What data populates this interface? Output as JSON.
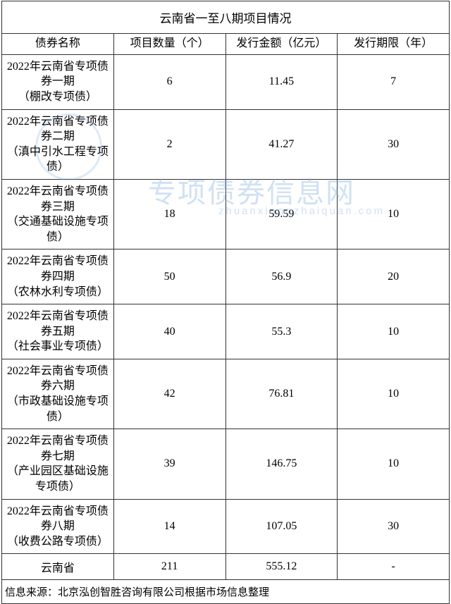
{
  "table": {
    "title": "云南省一至八期项目情况",
    "header": {
      "name": "债券名称",
      "count": "项目数量（个）",
      "amount": "发行金额（亿元）",
      "term": "发行期限（年）"
    },
    "rows": [
      {
        "name_line1": "2022年云南省专项债券一期",
        "name_line2": "（棚改专项债）",
        "count": "6",
        "amount": "11.45",
        "term": "7"
      },
      {
        "name_line1": "2022年云南省专项债券二期",
        "name_line2": "（滇中引水工程专项债）",
        "count": "2",
        "amount": "41.27",
        "term": "30"
      },
      {
        "name_line1": "2022年云南省专项债券三期",
        "name_line2": "（交通基础设施专项债）",
        "count": "18",
        "amount": "59.59",
        "term": "10"
      },
      {
        "name_line1": "2022年云南省专项债券四期",
        "name_line2": "（农林水利专项债）",
        "count": "50",
        "amount": "56.9",
        "term": "20"
      },
      {
        "name_line1": "2022年云南省专项债券五期",
        "name_line2": "（社会事业专项债）",
        "count": "40",
        "amount": "55.3",
        "term": "10"
      },
      {
        "name_line1": "2022年云南省专项债券六期",
        "name_line2": "（市政基础设施专项债）",
        "count": "42",
        "amount": "76.81",
        "term": "10"
      },
      {
        "name_line1": "2022年云南省专项债券七期",
        "name_line2": "（产业园区基础设施专项债）",
        "count": "39",
        "amount": "146.75",
        "term": "10"
      },
      {
        "name_line1": "2022年云南省专项债券八期",
        "name_line2": "（收费公路专项债）",
        "count": "14",
        "amount": "107.05",
        "term": "30"
      }
    ],
    "total": {
      "name": "云南省",
      "count": "211",
      "amount": "555.12",
      "term": "-"
    },
    "source": "信息来源：北京泓创智胜咨询有限公司根据市场信息整理"
  },
  "watermark": {
    "main": "专项债券信息网",
    "sub": "zhuanxiangzhaiquan.com"
  },
  "colors": {
    "border": "#333333",
    "text": "#000000",
    "watermark": "rgba(120,170,220,0.35)",
    "background": "#ffffff"
  }
}
